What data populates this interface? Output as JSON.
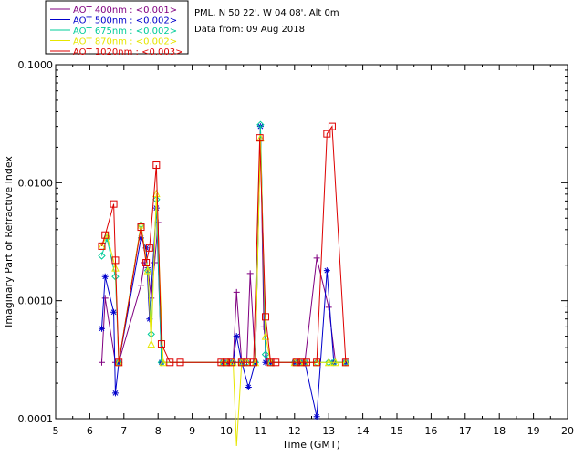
{
  "chart_data": {
    "type": "line",
    "title": "",
    "xlabel": "Time (GMT)",
    "ylabel": "Imaginary Part of Refractive Index",
    "x_scale": "linear",
    "y_scale": "log",
    "xlim": [
      5,
      20
    ],
    "ylim": [
      0.0001,
      0.1
    ],
    "x_ticks": [
      "5",
      "6",
      "7",
      "8",
      "9",
      "10",
      "11",
      "12",
      "13",
      "14",
      "15",
      "16",
      "17",
      "18",
      "19",
      "20"
    ],
    "y_ticks": [
      {
        "value": 0.0001,
        "label": "0.0001"
      },
      {
        "value": 0.001,
        "label": "0.0010"
      },
      {
        "value": 0.01,
        "label": "0.0100"
      },
      {
        "value": 0.1,
        "label": "0.1000"
      }
    ],
    "info_lines": [
      "PML, N 50 22', W 04 08', Alt 0m",
      "Data from: 09 Aug 2018"
    ],
    "legend_position": "top-left",
    "series": [
      {
        "name": "AOT  400nm : <0.001>",
        "color": "#800080",
        "marker": "plus",
        "points": [
          [
            6.35,
            0.0003
          ],
          [
            6.45,
            0.00105
          ],
          [
            6.75,
            0.0003
          ],
          [
            6.85,
            0.0003
          ],
          [
            7.5,
            0.00135
          ],
          [
            7.6,
            0.0021
          ],
          [
            7.7,
            0.0019
          ],
          [
            7.8,
            0.00105
          ],
          [
            7.9,
            0.0021
          ],
          [
            8.0,
            0.0046
          ],
          [
            8.1,
            0.0003
          ],
          [
            9.9,
            0.0003
          ],
          [
            10.05,
            0.0003
          ],
          [
            10.2,
            0.0003
          ],
          [
            10.3,
            0.00118
          ],
          [
            10.45,
            0.0003
          ],
          [
            10.6,
            0.0003
          ],
          [
            10.7,
            0.0017
          ],
          [
            10.85,
            0.0003
          ],
          [
            11.0,
            0.028
          ],
          [
            11.1,
            0.0006
          ],
          [
            11.2,
            0.0003
          ],
          [
            11.3,
            0.0003
          ],
          [
            12.0,
            0.0003
          ],
          [
            12.15,
            0.0003
          ],
          [
            12.3,
            0.0003
          ],
          [
            12.65,
            0.0023
          ],
          [
            13.0,
            0.00088
          ],
          [
            13.2,
            0.0003
          ],
          [
            13.5,
            0.0003
          ]
        ]
      },
      {
        "name": "AOT  500nm : <0.002>",
        "color": "#0000cc",
        "marker": "star",
        "points": [
          [
            6.35,
            0.00058
          ],
          [
            6.45,
            0.0016
          ],
          [
            6.7,
            0.0008
          ],
          [
            6.75,
            0.000165
          ],
          [
            6.85,
            0.0003
          ],
          [
            7.5,
            0.0034
          ],
          [
            7.65,
            0.0028
          ],
          [
            7.75,
            0.0007
          ],
          [
            7.95,
            0.0061
          ],
          [
            8.1,
            0.0003
          ],
          [
            9.9,
            0.0003
          ],
          [
            10.05,
            0.0003
          ],
          [
            10.2,
            0.0003
          ],
          [
            10.3,
            0.0005
          ],
          [
            10.45,
            0.0003
          ],
          [
            10.65,
            0.000185
          ],
          [
            10.85,
            0.0003
          ],
          [
            11.0,
            0.03
          ],
          [
            11.15,
            0.0003
          ],
          [
            11.3,
            0.0003
          ],
          [
            12.0,
            0.0003
          ],
          [
            12.15,
            0.0003
          ],
          [
            12.3,
            0.0003
          ],
          [
            12.65,
            0.000104
          ],
          [
            12.95,
            0.0018
          ],
          [
            13.15,
            0.0003
          ],
          [
            13.5,
            0.0003
          ]
        ]
      },
      {
        "name": "AOT  675nm : <0.002>",
        "color": "#00cc99",
        "marker": "diamond",
        "points": [
          [
            6.35,
            0.0024
          ],
          [
            6.5,
            0.0034
          ],
          [
            6.75,
            0.0016
          ],
          [
            6.85,
            0.0003
          ],
          [
            7.5,
            0.0044
          ],
          [
            7.7,
            0.0018
          ],
          [
            7.8,
            0.00052
          ],
          [
            7.95,
            0.0072
          ],
          [
            8.1,
            0.0003
          ],
          [
            9.9,
            0.0003
          ],
          [
            10.05,
            0.0003
          ],
          [
            10.2,
            0.0003
          ],
          [
            10.45,
            0.0003
          ],
          [
            10.6,
            0.0003
          ],
          [
            10.85,
            0.0003
          ],
          [
            11.0,
            0.031
          ],
          [
            11.15,
            0.00035
          ],
          [
            11.3,
            0.0003
          ],
          [
            12.0,
            0.0003
          ],
          [
            12.15,
            0.0003
          ],
          [
            12.3,
            0.0003
          ],
          [
            12.65,
            0.0003
          ],
          [
            13.0,
            0.0003
          ],
          [
            13.15,
            0.0003
          ],
          [
            13.5,
            0.0003
          ]
        ]
      },
      {
        "name": "AOT  870nm : <0.002>",
        "color": "#e6e600",
        "marker": "triangle",
        "points": [
          [
            6.35,
            0.0029
          ],
          [
            6.5,
            0.0036
          ],
          [
            6.75,
            0.0019
          ],
          [
            6.85,
            0.0003
          ],
          [
            7.5,
            0.0044
          ],
          [
            7.7,
            0.0018
          ],
          [
            7.8,
            0.00043
          ],
          [
            7.95,
            0.0081
          ],
          [
            8.15,
            0.0003
          ],
          [
            9.9,
            0.0003
          ],
          [
            10.05,
            0.0003
          ],
          [
            10.2,
            0.0003
          ],
          [
            10.3,
            5e-05
          ],
          [
            10.45,
            0.0003
          ],
          [
            10.6,
            0.0003
          ],
          [
            10.85,
            0.0003
          ],
          [
            11.0,
            0.024
          ],
          [
            11.15,
            0.0005
          ],
          [
            11.3,
            0.0003
          ],
          [
            12.0,
            0.0003
          ],
          [
            12.15,
            0.0003
          ],
          [
            12.3,
            0.0003
          ],
          [
            12.65,
            0.0003
          ],
          [
            13.0,
            0.0003
          ],
          [
            13.2,
            0.0003
          ],
          [
            13.5,
            0.0003
          ]
        ]
      },
      {
        "name": "AOT 1020nm : <0.003>",
        "color": "#dd0000",
        "marker": "square",
        "points": [
          [
            6.35,
            0.0029
          ],
          [
            6.45,
            0.0036
          ],
          [
            6.7,
            0.0066
          ],
          [
            6.75,
            0.0022
          ],
          [
            6.85,
            0.0003
          ],
          [
            7.5,
            0.0042
          ],
          [
            7.65,
            0.0021
          ],
          [
            7.75,
            0.0028
          ],
          [
            7.95,
            0.0141
          ],
          [
            8.1,
            0.00043
          ],
          [
            8.35,
            0.0003
          ],
          [
            8.65,
            0.0003
          ],
          [
            9.85,
            0.0003
          ],
          [
            10.0,
            0.0003
          ],
          [
            10.15,
            0.0003
          ],
          [
            10.45,
            0.0003
          ],
          [
            10.6,
            0.0003
          ],
          [
            10.8,
            0.0003
          ],
          [
            10.98,
            0.024
          ],
          [
            11.15,
            0.00073
          ],
          [
            11.3,
            0.0003
          ],
          [
            11.45,
            0.0003
          ],
          [
            12.05,
            0.0003
          ],
          [
            12.2,
            0.0003
          ],
          [
            12.35,
            0.0003
          ],
          [
            12.65,
            0.0003
          ],
          [
            12.95,
            0.026
          ],
          [
            13.1,
            0.03
          ],
          [
            13.5,
            0.0003
          ]
        ]
      }
    ]
  }
}
